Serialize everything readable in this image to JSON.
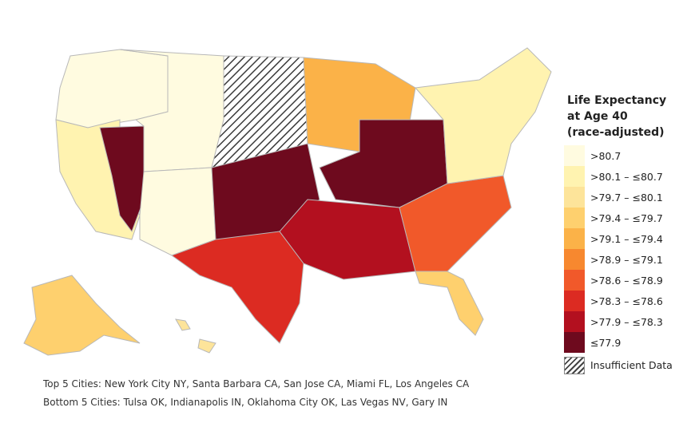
{
  "legend": {
    "title_lines": [
      "Life Expectancy",
      "at Age 40",
      "(race-adjusted)"
    ],
    "bins": [
      {
        "label": ">80.7",
        "color": "#fffbe0"
      },
      {
        "label": ">80.1 – ≤80.7",
        "color": "#fff3b0"
      },
      {
        "label": ">79.7 – ≤80.1",
        "color": "#fde49a"
      },
      {
        "label": ">79.4 – ≤79.7",
        "color": "#fed06e"
      },
      {
        "label": ">79.1 – ≤79.4",
        "color": "#fbb248"
      },
      {
        "label": ">78.9 – ≤79.1",
        "color": "#f7882f"
      },
      {
        "label": ">78.6 – ≤78.9",
        "color": "#f1592a"
      },
      {
        "label": ">78.3 – ≤78.6",
        "color": "#dc2b22"
      },
      {
        "label": ">77.9 – ≤78.3",
        "color": "#b3101f"
      },
      {
        "label": "≤77.9",
        "color": "#6e0a1e"
      }
    ],
    "insufficient_label": "Insufficient Data"
  },
  "notes": {
    "top_cities": "Top 5 Cities: New York City NY, Santa Barbara CA, San Jose CA, Miami FL, Los Angeles CA",
    "bottom_cities": "Bottom 5 Cities: Tulsa OK, Indianapolis IN, Oklahoma City OK, Las Vegas NV, Gary IN"
  },
  "map": {
    "regions": [
      {
        "name": "Pacific Northwest",
        "bin": 0
      },
      {
        "name": "California",
        "bin": 1
      },
      {
        "name": "Nevada",
        "bin": 9
      },
      {
        "name": "Mountain West",
        "bin": 0
      },
      {
        "name": "Great Plains North",
        "bin": "insufficient"
      },
      {
        "name": "Southern Plains",
        "bin": 9
      },
      {
        "name": "Texas",
        "bin": 7
      },
      {
        "name": "Midwest",
        "bin": 4
      },
      {
        "name": "Ohio Valley",
        "bin": 9
      },
      {
        "name": "Deep South",
        "bin": 8
      },
      {
        "name": "Southeast",
        "bin": 6
      },
      {
        "name": "Florida",
        "bin": 3
      },
      {
        "name": "Northeast",
        "bin": 1
      },
      {
        "name": "Alaska",
        "bin": 3
      },
      {
        "name": "Hawaii",
        "bin": 2
      }
    ]
  }
}
